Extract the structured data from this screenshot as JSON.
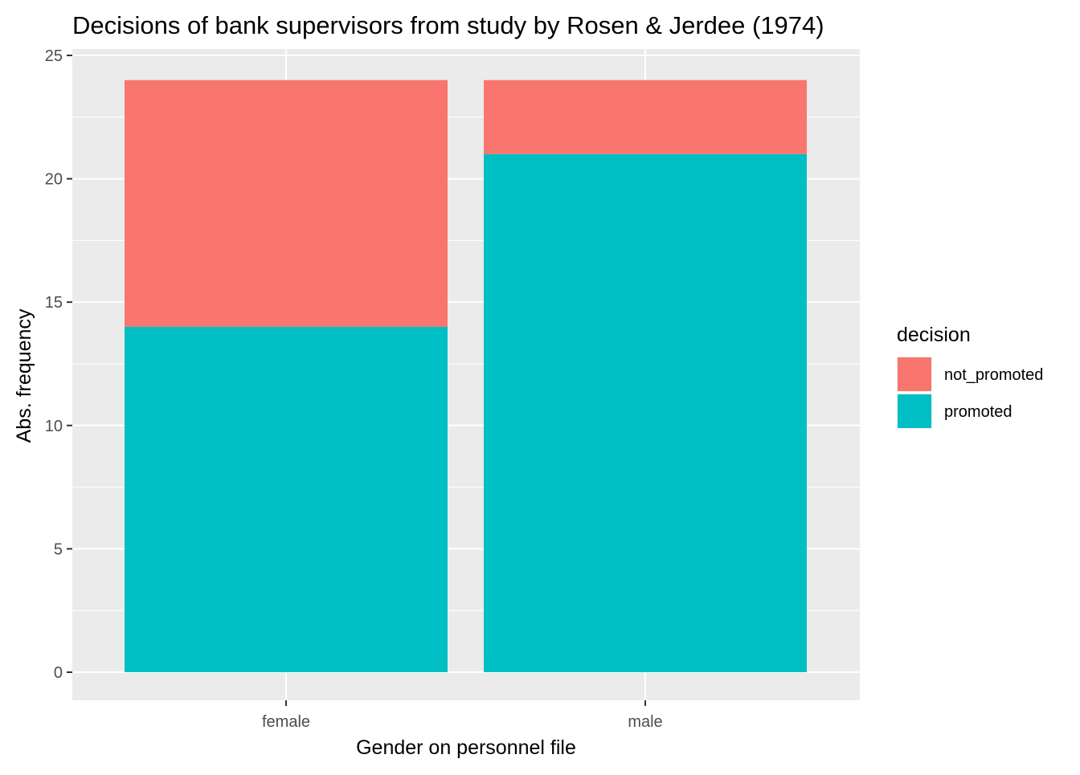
{
  "chart_data": {
    "type": "bar",
    "stacked": true,
    "title": "Decisions of bank supervisors from study by Rosen & Jerdee (1974)",
    "xlabel": "Gender on personnel file",
    "ylabel": "Abs. frequency",
    "categories": [
      "female",
      "male"
    ],
    "series": [
      {
        "name": "promoted",
        "values": [
          14,
          21
        ],
        "color": "#00BFC4"
      },
      {
        "name": "not_promoted",
        "values": [
          10,
          3
        ],
        "color": "#F8766D"
      }
    ],
    "ylim": [
      0,
      25
    ],
    "yticks": [
      0,
      5,
      10,
      15,
      20,
      25
    ],
    "grid": true,
    "panel_background": "#EBEBEB",
    "legend": {
      "title": "decision",
      "position": "right",
      "entries": [
        "not_promoted",
        "promoted"
      ]
    }
  }
}
